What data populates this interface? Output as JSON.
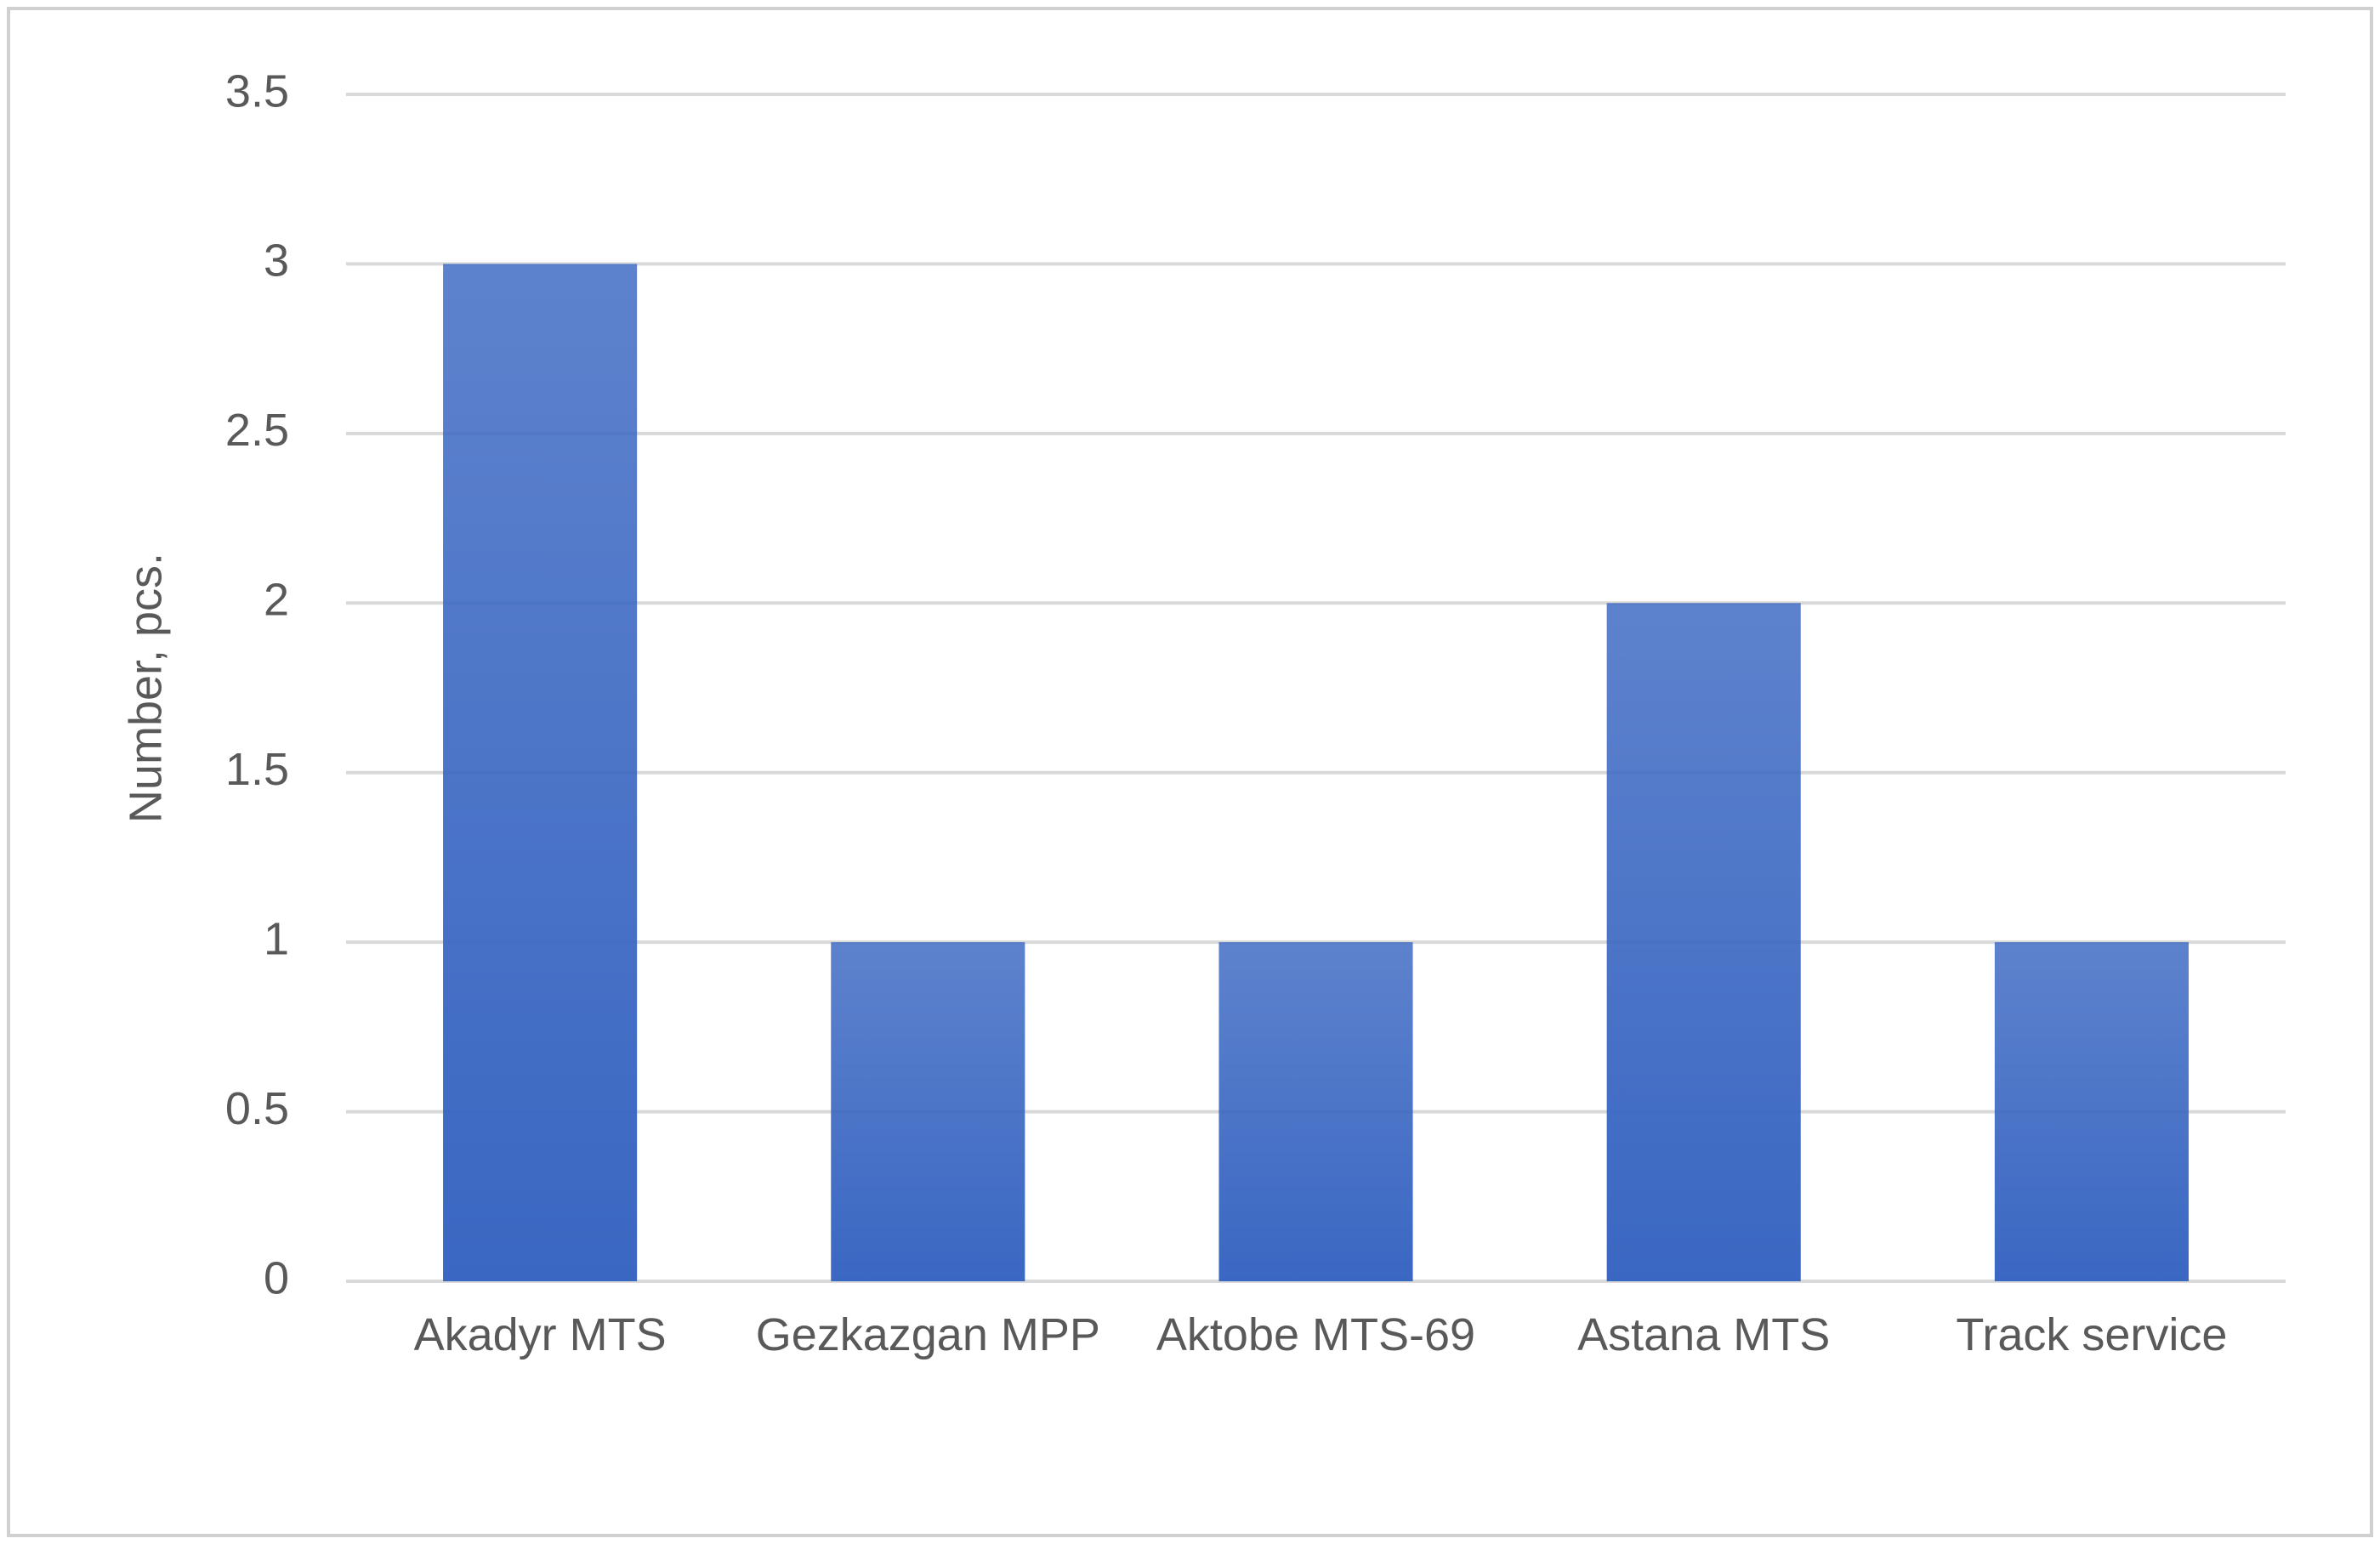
{
  "chart_data": {
    "type": "bar",
    "y_label": "Number, pcs.",
    "categories": [
      "Akadyr MTS",
      "Gezkazgan MPP",
      "Aktobe MTS-69",
      "Astana MTS",
      "Track service"
    ],
    "values": [
      3,
      1,
      1,
      2,
      1
    ],
    "color": "#3a67c2",
    "ylim": [
      0,
      3.5
    ],
    "yticks": [
      0,
      0.5,
      1,
      1.5,
      2,
      2.5,
      3,
      3.5
    ],
    "grid": true
  }
}
